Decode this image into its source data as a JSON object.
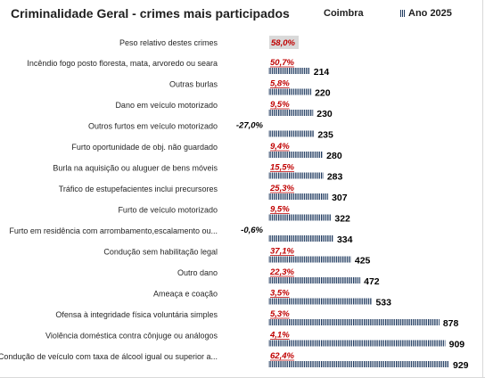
{
  "chart_data": {
    "type": "bar",
    "orientation": "horizontal",
    "title": "Criminalidade Geral - crimes mais participados",
    "legend": {
      "region": "Coimbra",
      "series": "Ano 2025"
    },
    "header_row": {
      "label": "Peso relativo destes crimes",
      "pct": "58,0%"
    },
    "categories": [
      "Incêndio fogo posto floresta, mata, arvoredo ou seara",
      "Outras burlas",
      "Dano em veículo motorizado",
      "Outros furtos em veículo motorizado",
      "Furto oportunidade de obj. não guardado",
      "Burla na aquisição ou aluguer de bens móveis",
      "Tráfico de estupefacientes  inclui precursores",
      "Furto de veículo motorizado",
      "Furto em residência com arrombamento,escalamento ou...",
      "Condução sem habilitação legal",
      "Outro dano",
      "Ameaça e coação",
      "Ofensa à integridade física voluntária simples",
      "Violência doméstica contra cônjuge ou análogos",
      "Condução de veículo com taxa de álcool igual ou superior a..."
    ],
    "series": [
      {
        "name": "Ano 2025",
        "values": [
          214,
          220,
          230,
          235,
          280,
          283,
          307,
          322,
          334,
          425,
          472,
          533,
          878,
          909,
          929
        ]
      }
    ],
    "variation": [
      "50,7%",
      "5,8%",
      "9,5%",
      "-27,0%",
      "9,4%",
      "15,5%",
      "25,3%",
      "9,5%",
      "-0,6%",
      "37,1%",
      "22,3%",
      "3,5%",
      "5,3%",
      "4,1%",
      "62,4%"
    ],
    "xlim": [
      0,
      929
    ],
    "grid": false,
    "legend_placement": "top-right",
    "colors": {
      "bar": "#1f3a5f",
      "positive_variation": "#c00000",
      "negative_variation": "#000000",
      "header_box": "#d9d9d9"
    }
  }
}
